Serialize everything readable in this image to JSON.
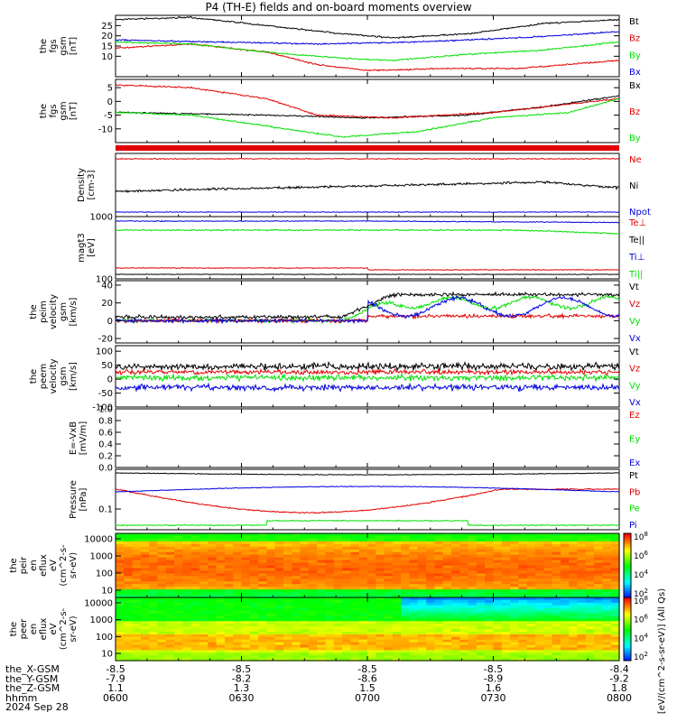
{
  "title": "P4 (TH-E) fields and on-board moments overview",
  "colors": {
    "black": "#000000",
    "red": "#e00000",
    "green": "#00e000",
    "blue": "#0000e0"
  },
  "chart_data": [
    {
      "type": "line",
      "panel": "fgs-gsm-mag",
      "ylabel": [
        "the",
        "fgs",
        "gsm",
        "[nT]"
      ],
      "ylim": [
        0,
        30
      ],
      "yticks": [
        10,
        15,
        20,
        25
      ],
      "series": [
        {
          "name": "Bt",
          "color": "black",
          "pts": [
            [
              0,
              28
            ],
            [
              0.15,
              29
            ],
            [
              0.3,
              25
            ],
            [
              0.45,
              21
            ],
            [
              0.55,
              19
            ],
            [
              0.7,
              21
            ],
            [
              0.85,
              26
            ],
            [
              1,
              28
            ]
          ]
        },
        {
          "name": "Bz",
          "color": "red",
          "pts": [
            [
              0,
              14
            ],
            [
              0.15,
              16
            ],
            [
              0.3,
              12
            ],
            [
              0.4,
              6
            ],
            [
              0.5,
              3
            ],
            [
              0.65,
              4
            ],
            [
              0.8,
              4
            ],
            [
              1,
              8
            ]
          ]
        },
        {
          "name": "By",
          "color": "green",
          "pts": [
            [
              0,
              17
            ],
            [
              0.15,
              16
            ],
            [
              0.3,
              12
            ],
            [
              0.45,
              9
            ],
            [
              0.55,
              8
            ],
            [
              0.7,
              11
            ],
            [
              0.85,
              13
            ],
            [
              1,
              17
            ]
          ]
        },
        {
          "name": "Bx",
          "color": "blue",
          "pts": [
            [
              0,
              18
            ],
            [
              0.2,
              17
            ],
            [
              0.4,
              16
            ],
            [
              0.6,
              17
            ],
            [
              0.8,
              19
            ],
            [
              1,
              22
            ]
          ]
        }
      ]
    },
    {
      "type": "line",
      "panel": "fgs-gsm-comp",
      "ylabel": [
        "the",
        "fgs",
        "gsm",
        "[nT]"
      ],
      "ylim": [
        -15,
        8
      ],
      "yticks": [
        -10,
        -5,
        0,
        5
      ],
      "series": [
        {
          "name": "Bx",
          "color": "black",
          "pts": [
            [
              0,
              -4
            ],
            [
              0.3,
              -5
            ],
            [
              0.5,
              -6
            ],
            [
              0.7,
              -5
            ],
            [
              0.85,
              -2
            ],
            [
              1,
              2
            ]
          ]
        },
        {
          "name": "Bz",
          "color": "red",
          "pts": [
            [
              0,
              6
            ],
            [
              0.15,
              5
            ],
            [
              0.3,
              1
            ],
            [
              0.4,
              -5
            ],
            [
              0.55,
              -6
            ],
            [
              0.75,
              -4
            ],
            [
              0.9,
              -1
            ],
            [
              1,
              1
            ]
          ]
        },
        {
          "name": "By",
          "color": "green",
          "pts": [
            [
              0,
              -4
            ],
            [
              0.15,
              -5
            ],
            [
              0.3,
              -9
            ],
            [
              0.45,
              -13
            ],
            [
              0.6,
              -11
            ],
            [
              0.75,
              -6
            ],
            [
              0.9,
              -4
            ],
            [
              1,
              1
            ]
          ]
        }
      ]
    },
    {
      "type": "line",
      "panel": "density",
      "ylabel": [
        "Density",
        "[cm-3]"
      ],
      "series": [
        {
          "name": "Ne",
          "color": "red"
        },
        {
          "name": "Ni",
          "color": "black"
        },
        {
          "name": "Npot",
          "color": "blue"
        }
      ]
    },
    {
      "type": "line",
      "panel": "temperature",
      "ylabel": [
        "magt3",
        "[eV]"
      ],
      "yscale": "log",
      "ylim": [
        100,
        1000
      ],
      "yticks": [
        100,
        1000
      ],
      "series": [
        {
          "name": "Te⊥",
          "color": "red"
        },
        {
          "name": "Te||",
          "color": "black"
        },
        {
          "name": "Ti⊥",
          "color": "blue"
        },
        {
          "name": "Ti||",
          "color": "green"
        }
      ]
    },
    {
      "type": "line",
      "panel": "peim-velocity",
      "ylabel": [
        "the",
        "peim",
        "velocity",
        "gsm",
        "[km/s]"
      ],
      "ylim": [
        -25,
        45
      ],
      "yticks": [
        -20,
        0,
        20,
        40
      ],
      "series": [
        {
          "name": "Vt",
          "color": "black"
        },
        {
          "name": "Vz",
          "color": "red"
        },
        {
          "name": "Vy",
          "color": "green"
        },
        {
          "name": "Vx",
          "color": "blue"
        }
      ]
    },
    {
      "type": "line",
      "panel": "peem-velocity",
      "ylabel": [
        "the",
        "peem",
        "velocity",
        "gsm",
        "[km/s]"
      ],
      "ylim": [
        -100,
        120
      ],
      "yticks": [
        -100,
        -50,
        0,
        50,
        100
      ],
      "series": [
        {
          "name": "Vt",
          "color": "black"
        },
        {
          "name": "Vz",
          "color": "red"
        },
        {
          "name": "Vy",
          "color": "green"
        },
        {
          "name": "Vx",
          "color": "blue"
        }
      ]
    },
    {
      "type": "line",
      "panel": "efield",
      "ylabel": [
        "E=-VxB",
        "[mV/m]"
      ],
      "ylim": [
        0,
        1
      ],
      "yticks": [
        0.0,
        0.2,
        0.4,
        0.6,
        0.8,
        1.0
      ],
      "series": [
        {
          "name": "Ez",
          "color": "red"
        },
        {
          "name": "Ey",
          "color": "green"
        },
        {
          "name": "Ex",
          "color": "blue"
        }
      ]
    },
    {
      "type": "line",
      "panel": "pressure",
      "ylabel": [
        "Pressure",
        "[nPa]"
      ],
      "yscale": "log",
      "ylim": [
        0.03,
        1
      ],
      "yticks": [
        0.1
      ],
      "series": [
        {
          "name": "Pt",
          "color": "black"
        },
        {
          "name": "Pb",
          "color": "red"
        },
        {
          "name": "Pe",
          "color": "green"
        },
        {
          "name": "Pi",
          "color": "blue"
        }
      ]
    },
    {
      "type": "heatmap",
      "panel": "peir-en-eflux",
      "ylabel": [
        "the",
        "peir",
        "en",
        "eflux",
        "eV",
        "(cm^2-s-",
        "sr-eV)"
      ],
      "yscale": "log",
      "yticks": [
        10,
        100,
        1000,
        10000
      ],
      "colorbar_ticks": [
        "10^2",
        "10^4",
        "10^6",
        "10^8"
      ],
      "colorbar_label": "[eV/(cm^2-s-sr-eV)] (All Qs)"
    },
    {
      "type": "heatmap",
      "panel": "peer-en-eflux",
      "ylabel": [
        "the",
        "peer",
        "en",
        "eflux",
        "eV",
        "(cm^2-s-",
        "sr-eV)"
      ],
      "yscale": "log",
      "yticks": [
        10,
        100,
        1000,
        10000
      ],
      "colorbar_ticks": [
        "10^2",
        "10^4",
        "10^6",
        "10^8"
      ],
      "colorbar_label": "[eV/(cm^2-s-sr-eV)] (All Qs)"
    }
  ],
  "xaxis": {
    "rows": [
      {
        "label": "the_X-GSM",
        "values": [
          "-8.5",
          "-8.5",
          "-8.5",
          "-8.5",
          "-8.4"
        ]
      },
      {
        "label": "the_Y-GSM",
        "values": [
          "-7.9",
          "-8.2",
          "-8.6",
          "-8.9",
          "-9.2"
        ]
      },
      {
        "label": "the_Z-GSM",
        "values": [
          "1.1",
          "1.3",
          "1.5",
          "1.6",
          "1.8"
        ]
      },
      {
        "label": "hhmm",
        "values": [
          "0600",
          "0630",
          "0700",
          "0730",
          "0800"
        ]
      }
    ],
    "date": "2024 Sep 28"
  }
}
